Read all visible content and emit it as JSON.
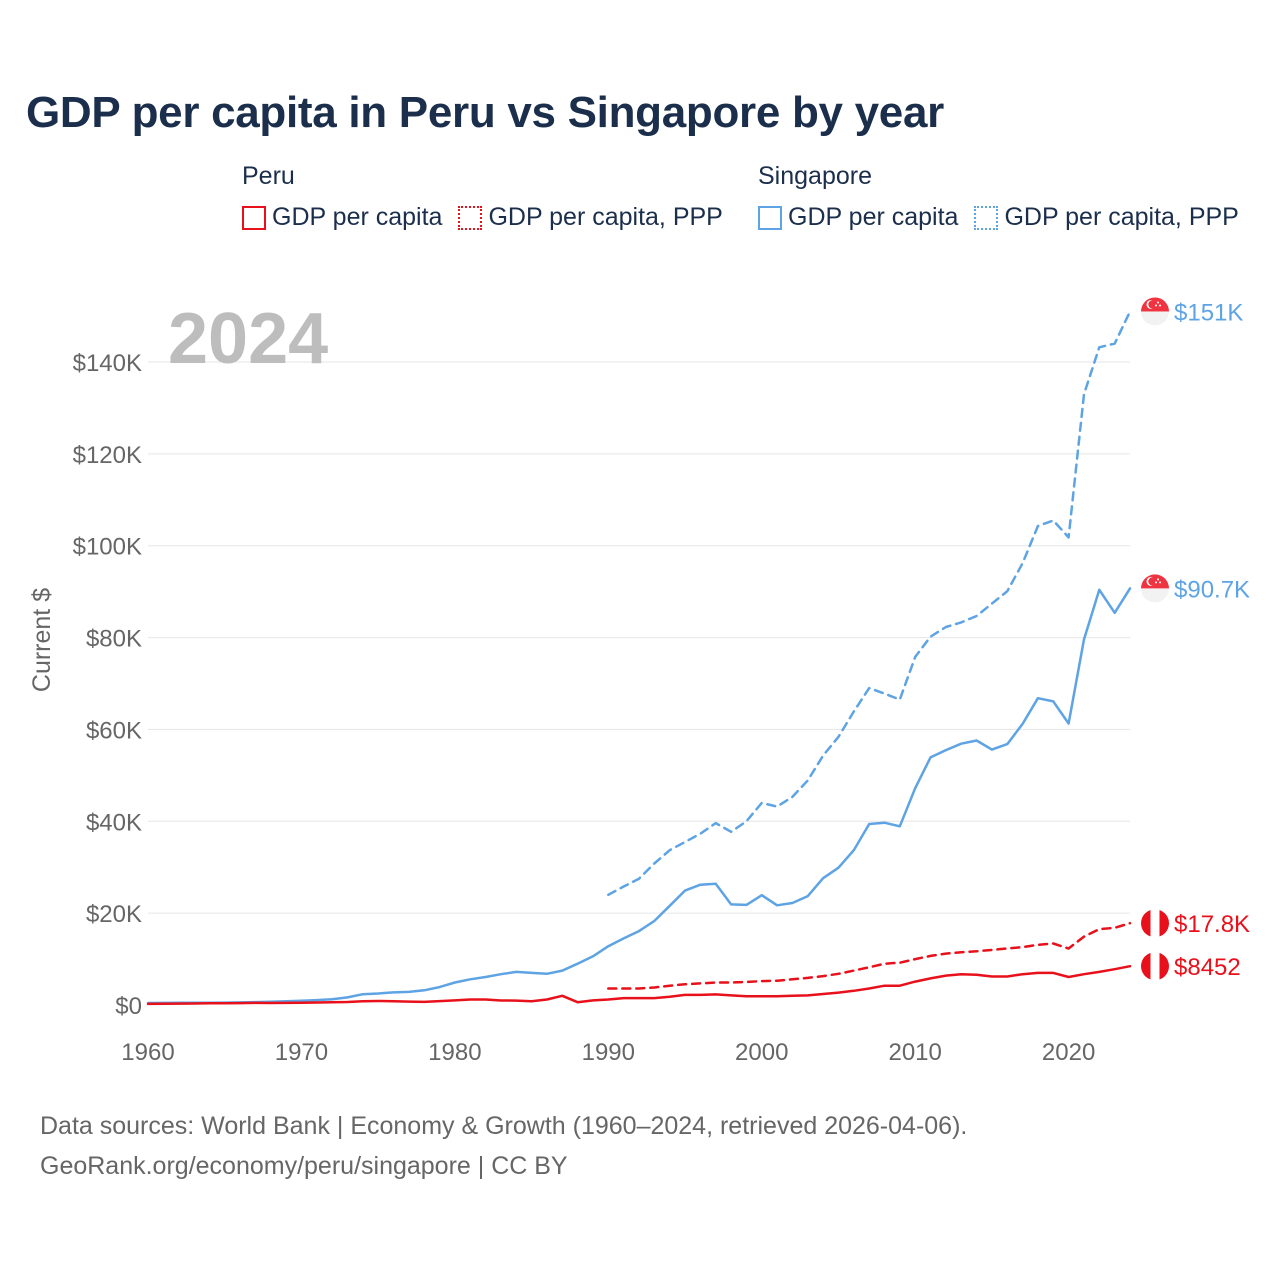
{
  "chart_data": {
    "type": "line",
    "title": "GDP per capita in Peru vs Singapore by year",
    "year_watermark": "2024",
    "ylabel": "Current $",
    "xlabel": "",
    "xlim": [
      1960,
      2024
    ],
    "ylim": [
      0,
      150000
    ],
    "x_ticks": [
      1960,
      1970,
      1980,
      1990,
      2000,
      2010,
      2020
    ],
    "x_tick_labels": [
      "1960",
      "1970",
      "1980",
      "1990",
      "2000",
      "2010",
      "2020"
    ],
    "y_ticks": [
      0,
      20000,
      40000,
      60000,
      80000,
      100000,
      120000,
      140000
    ],
    "y_tick_labels": [
      "$0",
      "$20K",
      "$40K",
      "$60K",
      "$80K",
      "$100K",
      "$120K",
      "$140K"
    ],
    "grid": true,
    "legend": {
      "groups": [
        {
          "name": "Peru",
          "items": [
            {
              "label": "GDP per capita",
              "style": "solid"
            },
            {
              "label": "GDP per capita, PPP",
              "style": "dotted"
            }
          ]
        },
        {
          "name": "Singapore",
          "items": [
            {
              "label": "GDP per capita",
              "style": "solid"
            },
            {
              "label": "GDP per capita, PPP",
              "style": "dotted"
            }
          ]
        }
      ],
      "placement": "top"
    },
    "colors": {
      "peru": "#e8101a",
      "singapore": "#5ea3e3"
    },
    "series": [
      {
        "name": "Singapore GDP per capita, PPP",
        "country": "singapore",
        "style": "dashed",
        "end_label": "$151K",
        "x": [
          1990,
          1991,
          1992,
          1993,
          1994,
          1995,
          1996,
          1997,
          1998,
          1999,
          2000,
          2001,
          2002,
          2003,
          2004,
          2005,
          2006,
          2007,
          2008,
          2009,
          2010,
          2011,
          2012,
          2013,
          2014,
          2015,
          2016,
          2017,
          2018,
          2019,
          2020,
          2021,
          2022,
          2023,
          2024
        ],
        "values": [
          24000,
          25800,
          27500,
          30800,
          33700,
          35500,
          37300,
          39600,
          37700,
          40000,
          44000,
          43200,
          45300,
          48900,
          54300,
          58400,
          63900,
          69000,
          67800,
          66500,
          75800,
          80200,
          82300,
          83300,
          84700,
          87400,
          90100,
          96200,
          104300,
          105500,
          101800,
          133000,
          143200,
          144000,
          151000
        ]
      },
      {
        "name": "Singapore GDP per capita",
        "country": "singapore",
        "style": "solid",
        "end_label": "$90.7K",
        "x": [
          1960,
          1961,
          1962,
          1963,
          1964,
          1965,
          1966,
          1967,
          1968,
          1969,
          1970,
          1971,
          1972,
          1973,
          1974,
          1975,
          1976,
          1977,
          1978,
          1979,
          1980,
          1981,
          1982,
          1983,
          1984,
          1985,
          1986,
          1987,
          1988,
          1989,
          1990,
          1991,
          1992,
          1993,
          1994,
          1995,
          1996,
          1997,
          1998,
          1999,
          2000,
          2001,
          2002,
          2003,
          2004,
          2005,
          2006,
          2007,
          2008,
          2009,
          2010,
          2011,
          2012,
          2013,
          2014,
          2015,
          2016,
          2017,
          2018,
          2019,
          2020,
          2021,
          2022,
          2023,
          2024
        ],
        "values": [
          430,
          450,
          470,
          510,
          490,
          520,
          570,
          630,
          710,
          810,
          930,
          1070,
          1270,
          1650,
          2350,
          2500,
          2750,
          2850,
          3200,
          3900,
          4900,
          5600,
          6100,
          6700,
          7200,
          7000,
          6800,
          7500,
          9000,
          10600,
          12800,
          14500,
          16100,
          18300,
          21600,
          24900,
          26200,
          26400,
          21900,
          21800,
          23900,
          21700,
          22200,
          23700,
          27600,
          29900,
          33700,
          39400,
          39700,
          38900,
          47200,
          53900,
          55500,
          56900,
          57600,
          55600,
          56800,
          61200,
          66800,
          66100,
          61300,
          79600,
          90400,
          85400,
          90700
        ]
      },
      {
        "name": "Peru GDP per capita, PPP",
        "country": "peru",
        "style": "dashed",
        "end_label": "$17.8K",
        "x": [
          1990,
          1991,
          1992,
          1993,
          1994,
          1995,
          1996,
          1997,
          1998,
          1999,
          2000,
          2001,
          2002,
          2003,
          2004,
          2005,
          2006,
          2007,
          2008,
          2009,
          2010,
          2011,
          2012,
          2013,
          2014,
          2015,
          2016,
          2017,
          2018,
          2019,
          2020,
          2021,
          2022,
          2023,
          2024
        ],
        "values": [
          3600,
          3600,
          3600,
          3800,
          4200,
          4500,
          4700,
          4900,
          4900,
          5000,
          5200,
          5300,
          5600,
          5900,
          6300,
          6800,
          7500,
          8200,
          9000,
          9200,
          10000,
          10700,
          11200,
          11500,
          11700,
          12000,
          12300,
          12600,
          13100,
          13400,
          12300,
          14900,
          16500,
          16800,
          17800
        ]
      },
      {
        "name": "Peru GDP per capita",
        "country": "peru",
        "style": "solid",
        "end_label": "$8452",
        "x": [
          1960,
          1961,
          1962,
          1963,
          1964,
          1965,
          1966,
          1967,
          1968,
          1969,
          1970,
          1971,
          1972,
          1973,
          1974,
          1975,
          1976,
          1977,
          1978,
          1979,
          1980,
          1981,
          1982,
          1983,
          1984,
          1985,
          1986,
          1987,
          1988,
          1989,
          1990,
          1991,
          1992,
          1993,
          1994,
          1995,
          1996,
          1997,
          1998,
          1999,
          2000,
          2001,
          2002,
          2003,
          2004,
          2005,
          2006,
          2007,
          2008,
          2009,
          2010,
          2011,
          2012,
          2013,
          2014,
          2015,
          2016,
          2017,
          2018,
          2019,
          2020,
          2021,
          2022,
          2023,
          2024
        ],
        "values": [
          250,
          270,
          300,
          330,
          360,
          380,
          420,
          450,
          430,
          450,
          500,
          540,
          580,
          660,
          800,
          880,
          830,
          750,
          670,
          840,
          1000,
          1200,
          1200,
          990,
          960,
          830,
          1200,
          2000,
          620,
          1000,
          1200,
          1500,
          1500,
          1500,
          1800,
          2200,
          2200,
          2300,
          2100,
          1900,
          1900,
          1900,
          2000,
          2100,
          2400,
          2700,
          3100,
          3600,
          4200,
          4200,
          5100,
          5800,
          6400,
          6700,
          6600,
          6200,
          6200,
          6700,
          7000,
          7000,
          6100,
          6700,
          7200,
          7800,
          8452
        ]
      }
    ]
  },
  "legend_labels": {
    "peru_group": "Peru",
    "singapore_group": "Singapore",
    "gdp_per_capita": "GDP per capita",
    "gdp_per_capita_ppp": "GDP per capita, PPP"
  },
  "source": {
    "line1": "Data sources: World Bank | Economy & Growth (1960–2024, retrieved 2026-04-06).",
    "line2": "GeoRank.org/economy/peru/singapore | CC BY"
  }
}
